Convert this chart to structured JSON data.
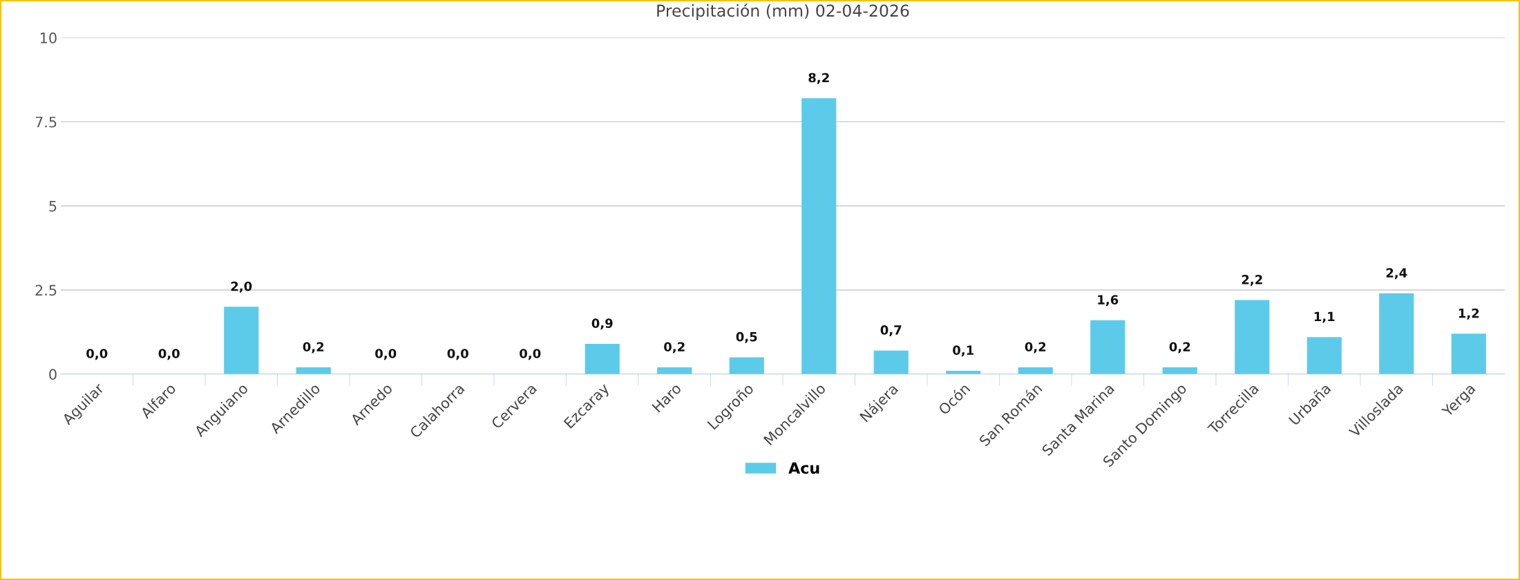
{
  "chart_data": {
    "type": "bar",
    "title": "Precipitación (mm) 02-04-2026",
    "categories": [
      "Aguilar",
      "Alfaro",
      "Anguiano",
      "Arnedillo",
      "Arnedo",
      "Calahorra",
      "Cervera",
      "Ezcaray",
      "Haro",
      "Logroño",
      "Moncalvillo",
      "Nájera",
      "Ocón",
      "San Román",
      "Santa Marina",
      "Santo Domingo",
      "Torrecilla",
      "Urbaña",
      "Villoslada",
      "Yerga"
    ],
    "series": [
      {
        "name": "Acu",
        "color": "#5ccbea",
        "values": [
          0.0,
          0.0,
          2.0,
          0.2,
          0.0,
          0.0,
          0.0,
          0.9,
          0.2,
          0.5,
          8.2,
          0.7,
          0.1,
          0.2,
          1.6,
          0.2,
          2.2,
          1.1,
          2.4,
          1.2
        ],
        "value_labels": [
          "0,0",
          "0,0",
          "2,0",
          "0,2",
          "0,0",
          "0,0",
          "0,0",
          "0,9",
          "0,2",
          "0,5",
          "8,2",
          "0,7",
          "0,1",
          "0,2",
          "1,6",
          "0,2",
          "2,2",
          "1,1",
          "2,4",
          "1,2"
        ]
      }
    ],
    "ylim": [
      0,
      10
    ],
    "yticks": [
      0,
      2.5,
      5,
      7.5,
      10
    ],
    "grid": "y",
    "legend": "bottom"
  }
}
